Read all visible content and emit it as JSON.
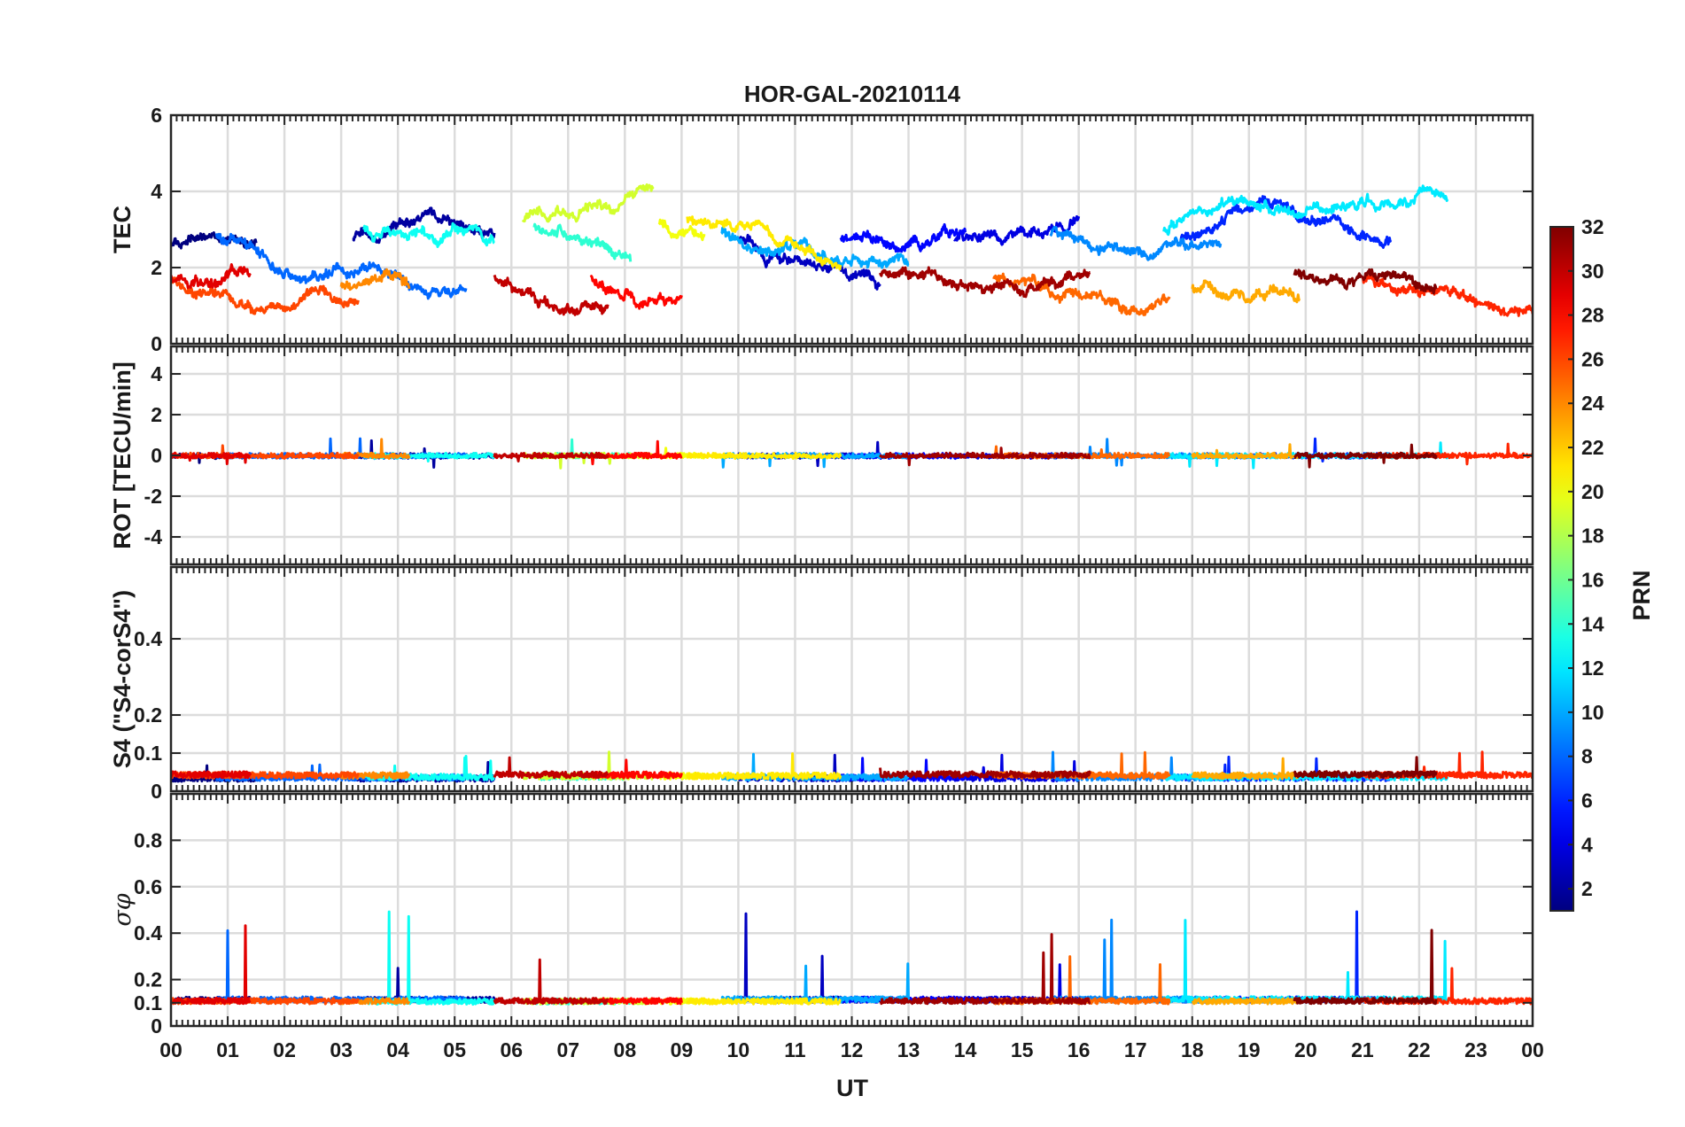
{
  "chart_data": {
    "type": "line",
    "title": "HOR-GAL-20210114",
    "xlabel": "UT",
    "x_tick_labels": [
      "00",
      "01",
      "02",
      "03",
      "04",
      "05",
      "06",
      "07",
      "08",
      "09",
      "10",
      "11",
      "12",
      "13",
      "14",
      "15",
      "16",
      "17",
      "18",
      "19",
      "20",
      "21",
      "22",
      "23",
      "00"
    ],
    "xlim": [
      0,
      24
    ],
    "grid": true,
    "panels": [
      {
        "id": "tec",
        "ylabel": "TEC",
        "ylim": [
          0,
          6
        ],
        "yticks": [
          0,
          2,
          4,
          6
        ],
        "ytick_labels": [
          "0",
          "2",
          "4",
          "6"
        ],
        "base": 2.4,
        "spread": 0.9,
        "noise": 0.15,
        "spikes": 0
      },
      {
        "id": "rot",
        "ylabel": "ROT [TECU/min]",
        "ylim": [
          -5,
          5
        ],
        "yticks": [
          -4,
          -2,
          0,
          2,
          4
        ],
        "ytick_labels": [
          "-4",
          "-2",
          "0",
          "2",
          "4"
        ],
        "base": 0,
        "spread": 0.02,
        "noise": 0.12,
        "spikes": 0.6
      },
      {
        "id": "s4",
        "ylabel": "S4 (\"S4-corS4\")",
        "ylim": [
          0,
          0.6
        ],
        "yticks": [
          0,
          0.1,
          0.2,
          0.4
        ],
        "ytick_labels": [
          "0",
          "0.1",
          "0.2",
          "0.4"
        ],
        "base": 0.035,
        "spread": 0.01,
        "noise": 0.008,
        "spikes": 0.05
      },
      {
        "id": "sigma",
        "ylabel": "σφ",
        "ylim": [
          0,
          1
        ],
        "yticks": [
          0,
          0.1,
          0.2,
          0.4,
          0.6,
          0.8
        ],
        "ytick_labels": [
          "0",
          "0.1",
          "0.2",
          "0.4",
          "0.6",
          "0.8"
        ],
        "base": 0.11,
        "spread": 0.005,
        "noise": 0.012,
        "spikes": 0.28
      }
    ],
    "series": [
      {
        "prn": 1,
        "start": 0,
        "end": 1.5
      },
      {
        "prn": 2,
        "start": 3.2,
        "end": 5.7
      },
      {
        "prn": 3,
        "start": 10,
        "end": 12.5
      },
      {
        "prn": 4,
        "start": 13.8,
        "end": 16
      },
      {
        "prn": 5,
        "start": 11.8,
        "end": 14
      },
      {
        "prn": 6,
        "start": 17.8,
        "end": 21.5
      },
      {
        "prn": 8,
        "start": 0.8,
        "end": 5.2
      },
      {
        "prn": 9,
        "start": 15.5,
        "end": 18.5
      },
      {
        "prn": 10,
        "start": 9.7,
        "end": 13
      },
      {
        "prn": 12,
        "start": 17.5,
        "end": 22.5
      },
      {
        "prn": 13,
        "start": 3.4,
        "end": 5.7
      },
      {
        "prn": 14,
        "start": 6.4,
        "end": 8.1
      },
      {
        "prn": 19,
        "start": 6.2,
        "end": 8.5
      },
      {
        "prn": 20,
        "start": 8.6,
        "end": 9.4
      },
      {
        "prn": 21,
        "start": 9.1,
        "end": 11.8
      },
      {
        "prn": 23,
        "start": 18,
        "end": 19.9
      },
      {
        "prn": 24,
        "start": 3,
        "end": 4.2
      },
      {
        "prn": 25,
        "start": 14.5,
        "end": 17.6
      },
      {
        "prn": 26,
        "start": 0,
        "end": 3.3
      },
      {
        "prn": 27,
        "start": 21,
        "end": 24
      },
      {
        "prn": 28,
        "start": 7.4,
        "end": 9
      },
      {
        "prn": 30,
        "start": 5.7,
        "end": 7.7
      },
      {
        "prn": 31,
        "start": 12.5,
        "end": 16.2
      },
      {
        "prn": 32,
        "start": 19.8,
        "end": 22.3
      },
      {
        "prn": 29,
        "start": 0,
        "end": 1.4
      }
    ],
    "colorbar": {
      "label": "PRN",
      "range": [
        1,
        32
      ],
      "ticks": [
        2,
        4,
        6,
        8,
        10,
        12,
        14,
        16,
        18,
        20,
        22,
        24,
        26,
        28,
        30,
        32
      ],
      "colormap": "jet"
    }
  }
}
